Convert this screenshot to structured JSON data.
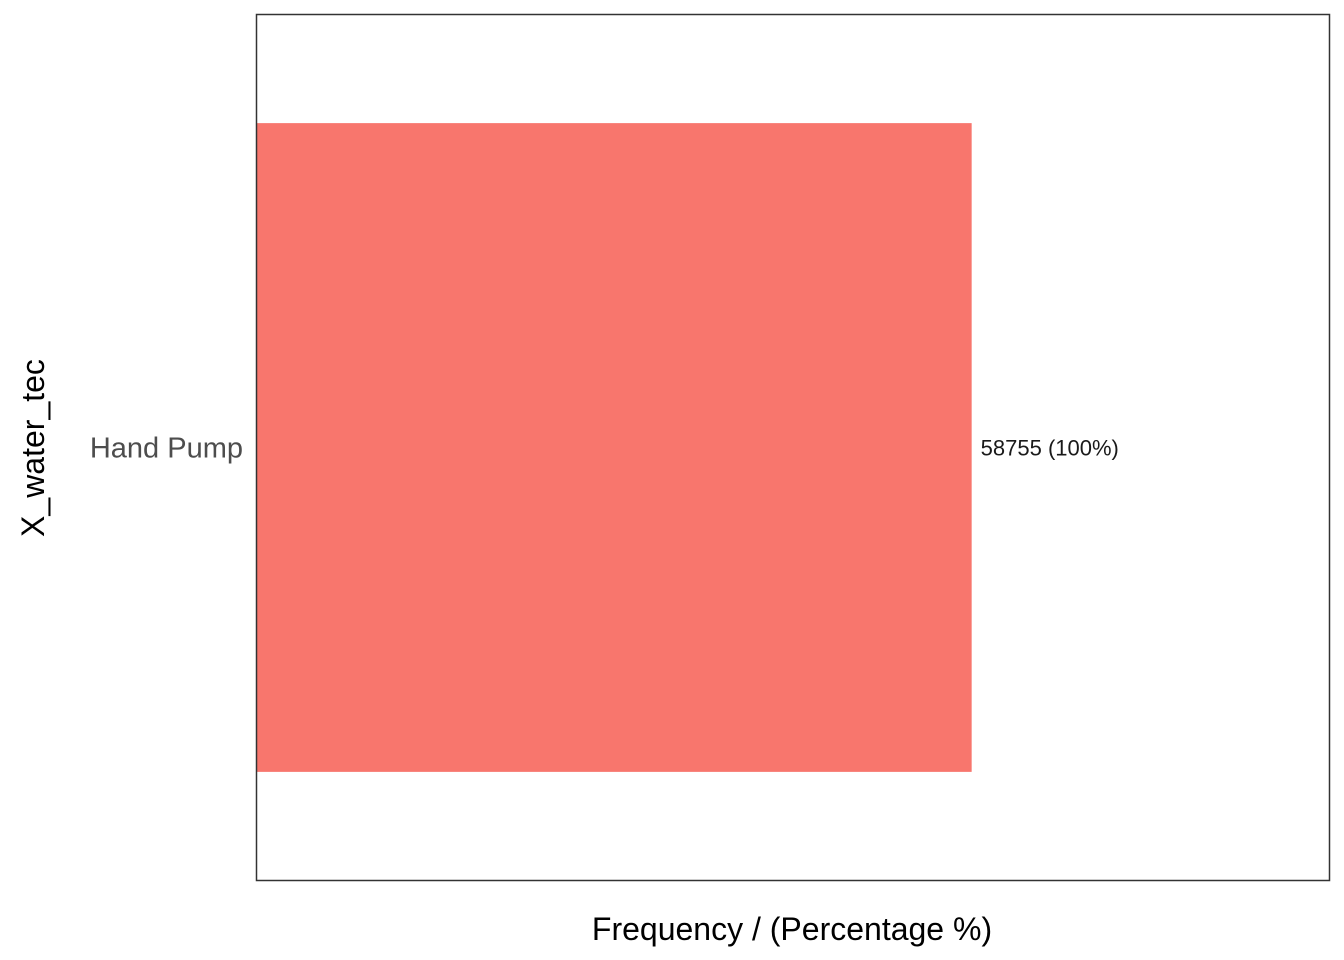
{
  "chart_data": {
    "type": "bar",
    "orientation": "horizontal",
    "categories": [
      "Hand Pump"
    ],
    "values": [
      58755
    ],
    "data_labels": [
      "58755 (100%)"
    ],
    "xlabel": "Frequency / (Percentage %)",
    "ylabel": "X_water_tec",
    "xlim": [
      0,
      88133
    ],
    "grid": false,
    "legend": "none",
    "bar_color": "#F8766D",
    "panel_border_color": "#333333"
  }
}
